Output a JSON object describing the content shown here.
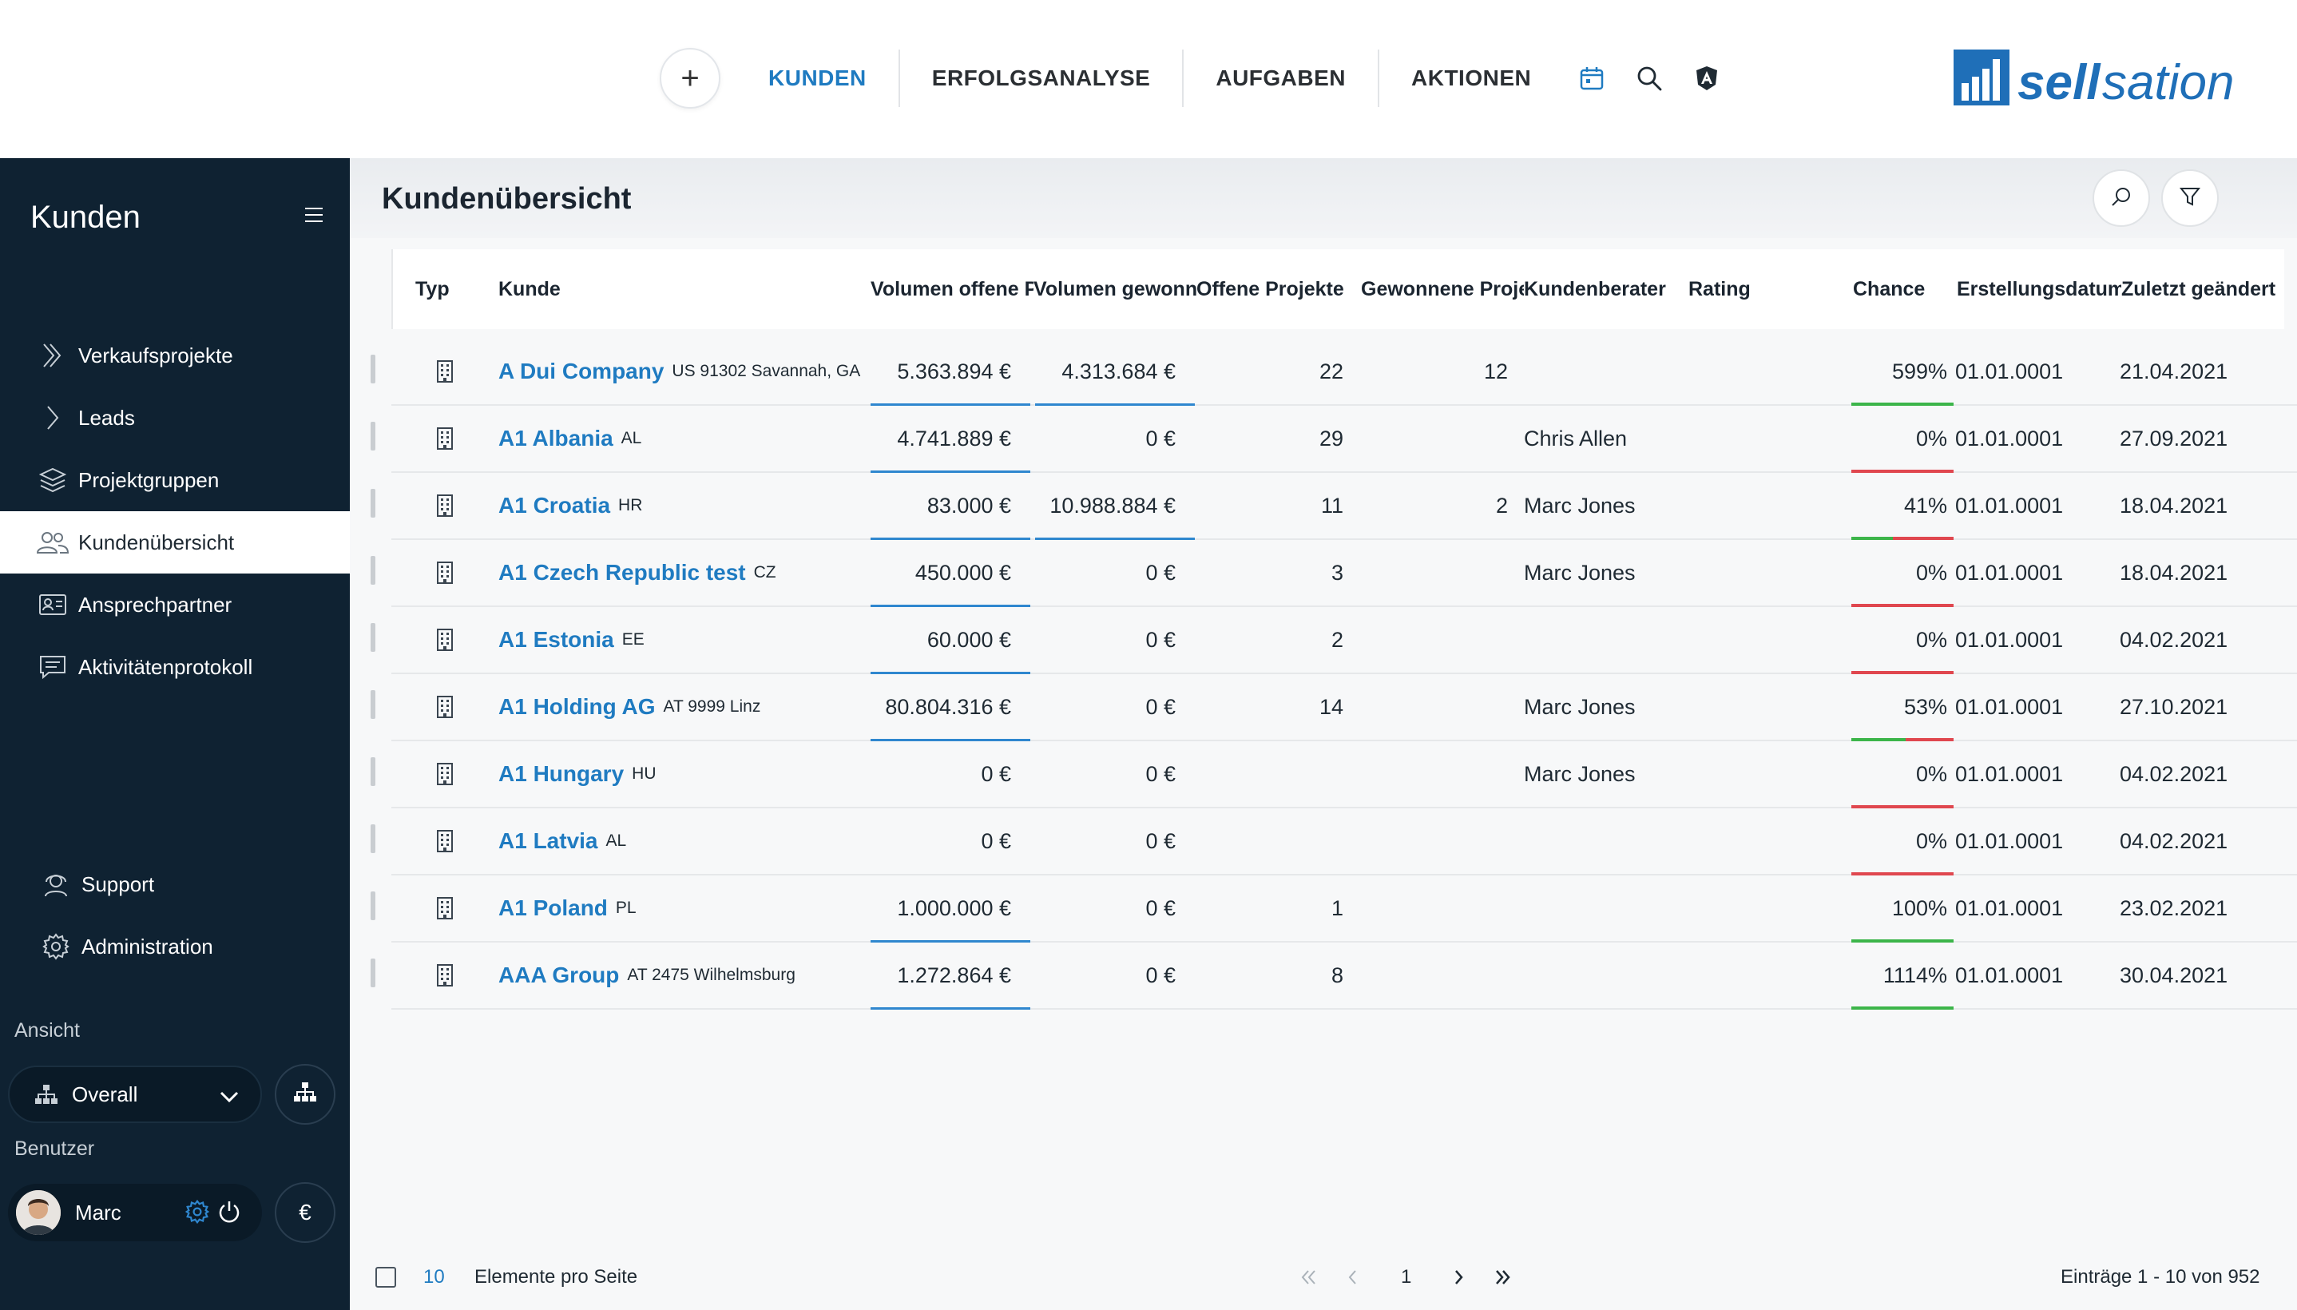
{
  "topnav": {
    "add_label": "+",
    "links": [
      "KUNDEN",
      "ERFOLGSANALYSE",
      "AUFGABEN",
      "AKTIONEN"
    ],
    "active": "KUNDEN",
    "icons": [
      "calendar-icon",
      "search-icon",
      "angular-icon"
    ]
  },
  "brand": {
    "name": "sellsation",
    "color": "#1f6fb8"
  },
  "sidebar": {
    "title": "Kunden",
    "items": [
      {
        "label": "Verkaufsprojekte",
        "icon": "double-chevron-icon"
      },
      {
        "label": "Leads",
        "icon": "chevron-right-icon"
      },
      {
        "label": "Projektgruppen",
        "icon": "layers-icon"
      },
      {
        "label": "Kundenübersicht",
        "icon": "users-icon",
        "active": true
      },
      {
        "label": "Ansprechpartner",
        "icon": "contact-card-icon"
      },
      {
        "label": "Aktivitätenprotokoll",
        "icon": "chat-icon"
      }
    ],
    "bottom_items": [
      {
        "label": "Support",
        "icon": "headset-icon"
      },
      {
        "label": "Administration",
        "icon": "gear-icon"
      }
    ],
    "view_label": "Ansicht",
    "view_value": "Overall",
    "user_label": "Benutzer",
    "user_name": "Marc",
    "currency_symbol": "€"
  },
  "main": {
    "title": "Kundenübersicht",
    "columns": [
      "Typ",
      "Kunde",
      "Volumen offene P",
      "Volumen gewonn",
      "Offene Projekte",
      "Gewonnene Proje",
      "Kundenberater",
      "Rating",
      "Chance",
      "Erstellungsdatum",
      "Zuletzt geändert"
    ],
    "rows": [
      {
        "name": "A Dui Company",
        "loc": "US 91302 Savannah, GA",
        "vol_open": "5.363.894 €",
        "vol_won": "4.313.684 €",
        "open": "22",
        "won": "12",
        "advisor": "",
        "rating": "",
        "chance": "599%",
        "chance_value": 1.0,
        "created": "01.01.0001",
        "changed": "21.04.2021"
      },
      {
        "name": "A1 Albania",
        "loc": "AL",
        "vol_open": "4.741.889 €",
        "vol_won": "0 €",
        "open": "29",
        "won": "",
        "advisor": "Chris Allen",
        "rating": "",
        "chance": "0%",
        "chance_value": 0.0,
        "created": "01.01.0001",
        "changed": "27.09.2021"
      },
      {
        "name": "A1 Croatia",
        "loc": "HR",
        "vol_open": "83.000 €",
        "vol_won": "10.988.884 €",
        "open": "11",
        "won": "2",
        "advisor": "Marc Jones",
        "rating": "",
        "chance": "41%",
        "chance_value": 0.41,
        "created": "01.01.0001",
        "changed": "18.04.2021"
      },
      {
        "name": "A1 Czech Republic test",
        "loc": "CZ",
        "vol_open": "450.000 €",
        "vol_won": "0 €",
        "open": "3",
        "won": "",
        "advisor": "Marc Jones",
        "rating": "",
        "chance": "0%",
        "chance_value": 0.0,
        "created": "01.01.0001",
        "changed": "18.04.2021"
      },
      {
        "name": "A1 Estonia",
        "loc": "EE",
        "vol_open": "60.000 €",
        "vol_won": "0 €",
        "open": "2",
        "won": "",
        "advisor": "",
        "rating": "",
        "chance": "0%",
        "chance_value": 0.0,
        "created": "01.01.0001",
        "changed": "04.02.2021"
      },
      {
        "name": "A1 Holding AG",
        "loc": "AT 9999 Linz",
        "vol_open": "80.804.316 €",
        "vol_won": "0 €",
        "open": "14",
        "won": "",
        "advisor": "Marc Jones",
        "rating": "",
        "chance": "53%",
        "chance_value": 0.53,
        "created": "01.01.0001",
        "changed": "27.10.2021"
      },
      {
        "name": "A1 Hungary",
        "loc": "HU",
        "vol_open": "0 €",
        "vol_won": "0 €",
        "open": "",
        "won": "",
        "advisor": "Marc Jones",
        "rating": "",
        "chance": "0%",
        "chance_value": 0.0,
        "created": "01.01.0001",
        "changed": "04.02.2021"
      },
      {
        "name": "A1 Latvia",
        "loc": "AL",
        "vol_open": "0 €",
        "vol_won": "0 €",
        "open": "",
        "won": "",
        "advisor": "",
        "rating": "",
        "chance": "0%",
        "chance_value": 0.0,
        "created": "01.01.0001",
        "changed": "04.02.2021"
      },
      {
        "name": "A1 Poland",
        "loc": "PL",
        "vol_open": "1.000.000 €",
        "vol_won": "0 €",
        "open": "1",
        "won": "",
        "advisor": "",
        "rating": "",
        "chance": "100%",
        "chance_value": 1.0,
        "created": "01.01.0001",
        "changed": "23.02.2021"
      },
      {
        "name": "AAA Group",
        "loc": "AT 2475 Wilhelmsburg",
        "vol_open": "1.272.864 €",
        "vol_won": "0 €",
        "open": "8",
        "won": "",
        "advisor": "",
        "rating": "",
        "chance": "1114%",
        "chance_value": 1.0,
        "created": "01.01.0001",
        "changed": "30.04.2021"
      }
    ],
    "footer": {
      "page_size": "10",
      "page_size_label": "Elemente pro Seite",
      "current_page": "1",
      "entries": "Einträge 1 - 10 von 952"
    }
  },
  "colors": {
    "accent": "#1f7bc1",
    "sidebar_bg": "#0f2232",
    "chance_good": "#3cb54a",
    "chance_bad": "#e0474f"
  }
}
